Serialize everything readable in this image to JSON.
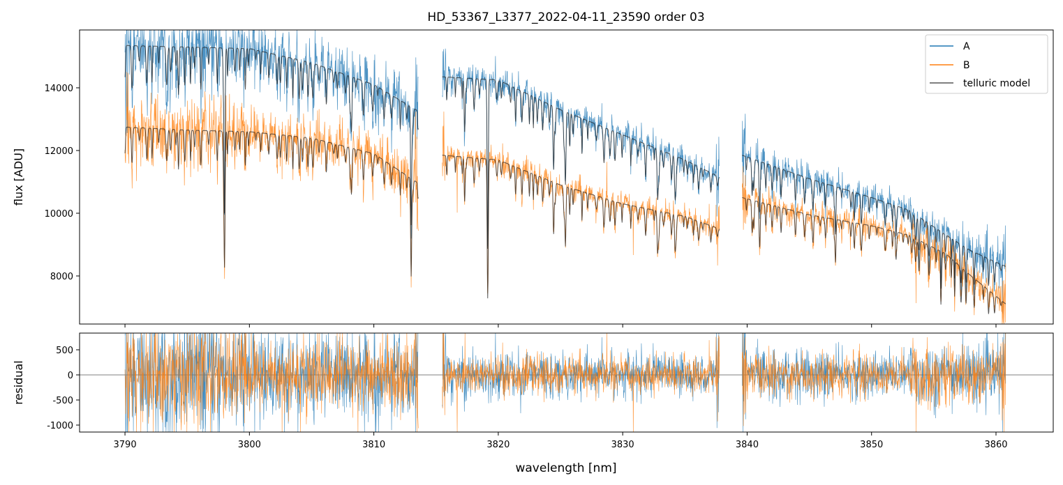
{
  "chart_data": {
    "type": "line",
    "title": "HD_53367_L3377_2022-04-11_23590  order 03",
    "xlabel": "wavelength [nm]",
    "panels": [
      {
        "name": "flux",
        "ylabel": "flux [ADU]",
        "ylim": [
          6467,
          15844
        ],
        "yticks": [
          8000,
          10000,
          12000,
          14000
        ]
      },
      {
        "name": "residual",
        "ylabel": "residual",
        "ylim": [
          -1139,
          833
        ],
        "yticks": [
          -1000,
          -500,
          0,
          500
        ]
      }
    ],
    "xlim": [
      3786.35,
      3864.6
    ],
    "xticks": [
      3790,
      3800,
      3810,
      3820,
      3830,
      3840,
      3850,
      3860
    ],
    "legend": {
      "position": "top-right",
      "entries": [
        "A",
        "B",
        "telluric model"
      ]
    },
    "colors": {
      "A": "#1f77b4",
      "B": "#ff7f0e",
      "model": "#222222"
    },
    "segments": [
      [
        3790.0,
        3813.6
      ],
      [
        3815.5,
        3837.8
      ],
      [
        3839.6,
        3860.8
      ]
    ],
    "series": [
      {
        "name": "A",
        "noise_frac": [
          0.035,
          0.02,
          0.025
        ],
        "continuum": [
          [
            3790,
            15350
          ],
          [
            3795,
            15300
          ],
          [
            3800,
            15250
          ],
          [
            3805,
            14800
          ],
          [
            3810,
            14100
          ],
          [
            3813.6,
            13250
          ],
          [
            3815.5,
            14350
          ],
          [
            3820,
            14250
          ],
          [
            3825,
            13300
          ],
          [
            3830,
            12500
          ],
          [
            3835,
            11700
          ],
          [
            3837.8,
            11150
          ],
          [
            3839.6,
            11850
          ],
          [
            3845,
            11100
          ],
          [
            3850,
            10500
          ],
          [
            3853,
            10100
          ],
          [
            3856,
            9300
          ],
          [
            3858,
            8800
          ],
          [
            3860.8,
            8300
          ]
        ]
      },
      {
        "name": "B",
        "noise_frac": [
          0.035,
          0.02,
          0.025
        ],
        "continuum": [
          [
            3790,
            12750
          ],
          [
            3795,
            12650
          ],
          [
            3800,
            12600
          ],
          [
            3805,
            12400
          ],
          [
            3810,
            11900
          ],
          [
            3813.6,
            10950
          ],
          [
            3815.5,
            11850
          ],
          [
            3820,
            11700
          ],
          [
            3825,
            10900
          ],
          [
            3830,
            10300
          ],
          [
            3835,
            9900
          ],
          [
            3837.8,
            9500
          ],
          [
            3839.6,
            10500
          ],
          [
            3845,
            9950
          ],
          [
            3850,
            9600
          ],
          [
            3853,
            9300
          ],
          [
            3856,
            8700
          ],
          [
            3858,
            8000
          ],
          [
            3860.8,
            7100
          ]
        ]
      }
    ],
    "absorption_lines": [
      {
        "wl": 3798.0,
        "depth": 0.32
      },
      {
        "wl": 3794.3,
        "depth": 0.1
      },
      {
        "wl": 3808.2,
        "depth": 0.12
      },
      {
        "wl": 3813.0,
        "depth": 0.28
      },
      {
        "wl": 3819.15,
        "depth": 0.37
      },
      {
        "wl": 3817.3,
        "depth": 0.12
      },
      {
        "wl": 3824.45,
        "depth": 0.15
      },
      {
        "wl": 3825.4,
        "depth": 0.17
      },
      {
        "wl": 3832.8,
        "depth": 0.12
      },
      {
        "wl": 3834.2,
        "depth": 0.08
      },
      {
        "wl": 3840.4,
        "depth": 0.1
      },
      {
        "wl": 3847.1,
        "depth": 0.14
      },
      {
        "wl": 3841.0,
        "depth": 0.06
      },
      {
        "wl": 3855.6,
        "depth": 0.12
      },
      {
        "wl": 3857.6,
        "depth": 0.12
      }
    ]
  }
}
